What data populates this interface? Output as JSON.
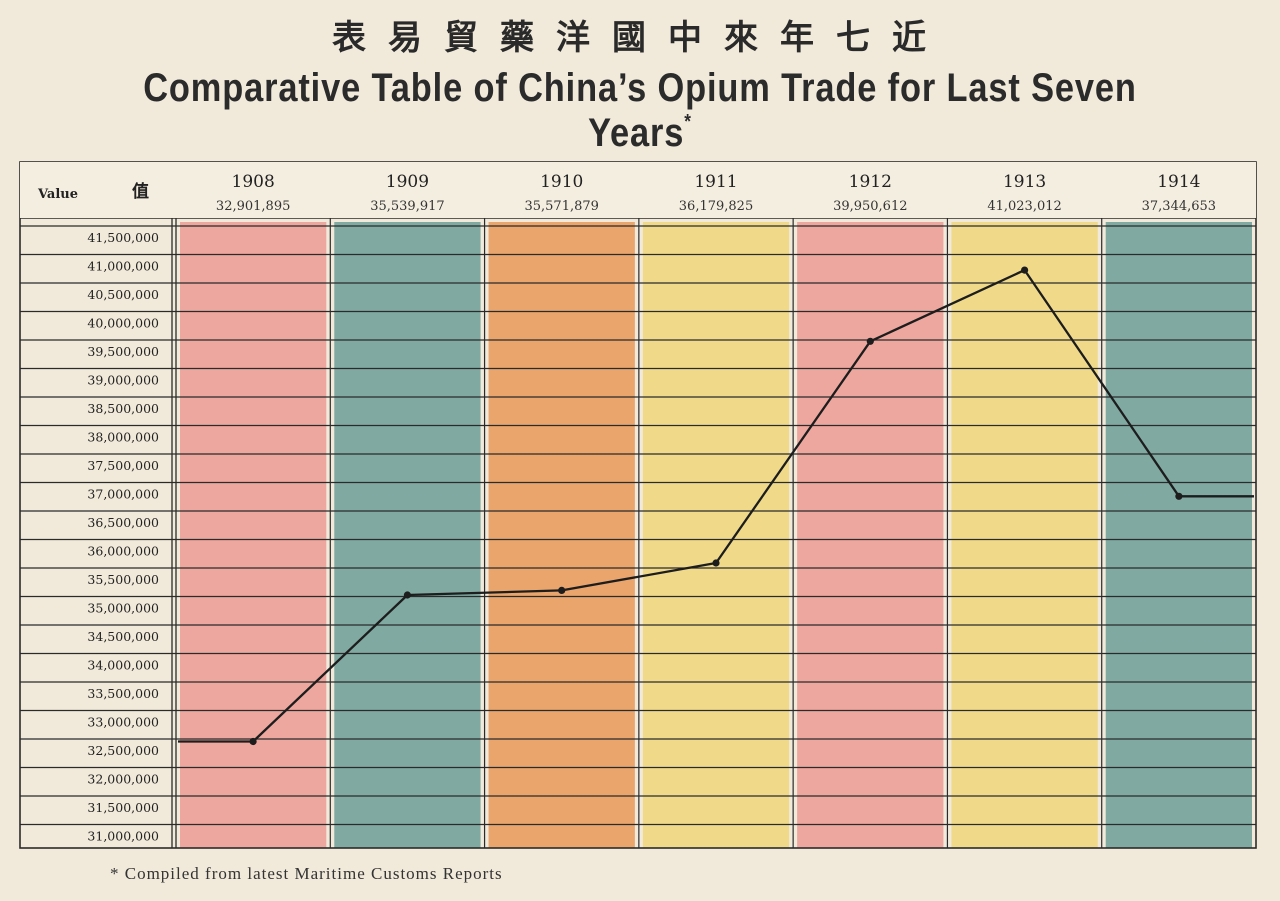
{
  "title_cn": "表易貿藥洋國中來年七近",
  "title_en": "Comparative Table of China’s Opium Trade for Last Seven Years",
  "title_mark": "*",
  "value_header": "Value",
  "value_header_cn": "值",
  "footnote": "* Compiled from latest Maritime Customs Reports",
  "colors": {
    "pink": "#eda79e",
    "teal": "#7fa9a1",
    "orange": "#e9a56c",
    "yellow": "#f0da8a",
    "line": "#1d1d1d",
    "grid": "#2b2b2b"
  },
  "chart_data": {
    "type": "line",
    "categories": [
      "1908",
      "1909",
      "1910",
      "1911",
      "1912",
      "1913",
      "1914"
    ],
    "value_labels": [
      "32,901,895",
      "35,539,917",
      "35,571,879",
      "36,179,825",
      "39,950,612",
      "41,023,012",
      "37,344,653"
    ],
    "values": [
      32650000,
      35220000,
      35300000,
      35780000,
      39670000,
      40920000,
      36950000
    ],
    "band_colors": [
      "pink",
      "teal",
      "orange",
      "yellow",
      "pink",
      "yellow",
      "teal"
    ],
    "y_ticks": [
      "41,500,000",
      "41,000,000",
      "40,500,000",
      "40,000,000",
      "39,500,000",
      "39,000,000",
      "38,500,000",
      "38,000,000",
      "37,500,000",
      "37,000,000",
      "36,500,000",
      "36,000,000",
      "35,500,000",
      "35,000,000",
      "34,500,000",
      "34,000,000",
      "33,500,000",
      "33,000,000",
      "32,500,000",
      "32,000,000",
      "31,500,000",
      "31,000,000"
    ],
    "ylim": [
      31000000,
      41500000
    ],
    "grid": true
  }
}
